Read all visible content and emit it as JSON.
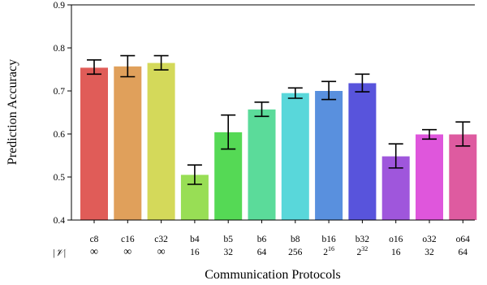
{
  "chart_data": {
    "type": "bar",
    "title": "",
    "xlabel": "Communication Protocols",
    "ylabel": "Prediction Accuracy",
    "ylim": [
      0.4,
      0.9
    ],
    "yticks": [
      "0.4",
      "0.5",
      "0.6",
      "0.7",
      "0.8",
      "0.9"
    ],
    "grid": false,
    "row_label": "|𝒱|",
    "categories": [
      "c8",
      "c16",
      "c32",
      "b4",
      "b5",
      "b6",
      "b8",
      "b16",
      "b32",
      "o16",
      "o32",
      "o64"
    ],
    "vocab_sizes": [
      {
        "base": "∞"
      },
      {
        "base": "∞"
      },
      {
        "base": "∞"
      },
      {
        "base": "16"
      },
      {
        "base": "32"
      },
      {
        "base": "64"
      },
      {
        "base": "256"
      },
      {
        "base": "2",
        "exp": "16"
      },
      {
        "base": "2",
        "exp": "32"
      },
      {
        "base": "16"
      },
      {
        "base": "32"
      },
      {
        "base": "64"
      }
    ],
    "values": [
      0.754,
      0.757,
      0.765,
      0.505,
      0.604,
      0.657,
      0.695,
      0.7,
      0.718,
      0.548,
      0.599,
      0.599
    ],
    "error_low": [
      0.739,
      0.733,
      0.749,
      0.483,
      0.565,
      0.641,
      0.683,
      0.68,
      0.698,
      0.521,
      0.588,
      0.572
    ],
    "error_high": [
      0.772,
      0.782,
      0.782,
      0.528,
      0.644,
      0.674,
      0.707,
      0.722,
      0.739,
      0.577,
      0.61,
      0.628
    ],
    "colors": [
      "#e05c58",
      "#e0a05b",
      "#d4d95a",
      "#98de55",
      "#55d955",
      "#5bdb9a",
      "#59d7da",
      "#5990de",
      "#5854dc",
      "#9f56dc",
      "#df56dc",
      "#de5ba0"
    ]
  }
}
